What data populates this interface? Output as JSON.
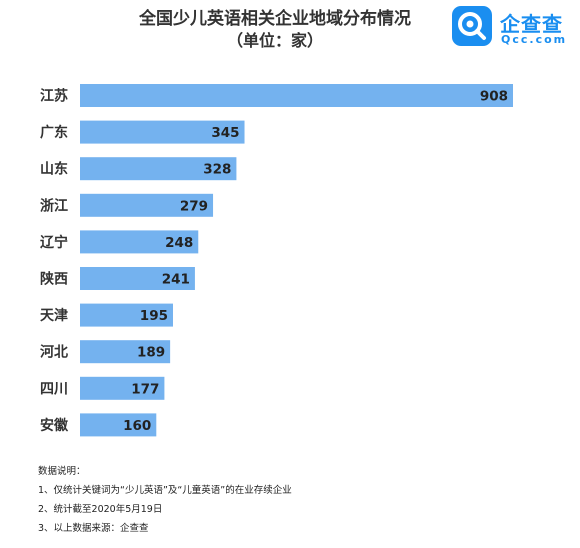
{
  "title": "全国少儿英语相关企业地域分布情况",
  "subtitle": "（单位：家）",
  "logo": {
    "brand": "企查查",
    "domain": "Qcc.com",
    "icon": "qcc-logo-icon"
  },
  "colors": {
    "bar": "#74b2ef",
    "label": "#333333",
    "value": "#222222"
  },
  "chart_data": {
    "type": "bar",
    "orientation": "horizontal",
    "title": "全国少儿英语相关企业地域分布情况",
    "subtitle": "（单位：家）",
    "categories": [
      "江苏",
      "广东",
      "山东",
      "浙江",
      "辽宁",
      "陕西",
      "天津",
      "河北",
      "四川",
      "安徽"
    ],
    "values": [
      908,
      345,
      328,
      279,
      248,
      241,
      195,
      189,
      177,
      160
    ],
    "data_labels": [
      "908",
      "345",
      "328",
      "279",
      "248",
      "241",
      "195",
      "189",
      "177",
      "160"
    ],
    "xlim": [
      0,
      908
    ],
    "grid": false,
    "legend": "none"
  },
  "notes": {
    "heading": "数据说明：",
    "items": [
      "1、仅统计关键词为“少儿英语”及“儿童英语”的在业存续企业",
      "2、统计截至2020年5月19日",
      "3、以上数据来源：企查查"
    ]
  }
}
